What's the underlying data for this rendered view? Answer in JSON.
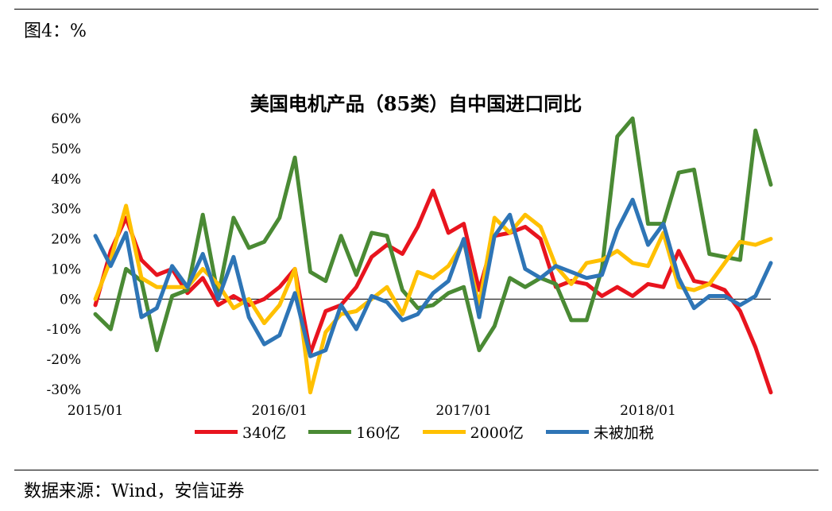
{
  "figure_label": "图4：%",
  "source": "数据来源：Wind，安信证券",
  "chart_data": {
    "type": "line",
    "title": "美国电机产品（85类）自中国进口同比",
    "xlabel": "",
    "ylabel": "",
    "ylim": [
      -0.3,
      0.6
    ],
    "y_ticks": [
      "60%",
      "50%",
      "40%",
      "30%",
      "20%",
      "10%",
      "0%",
      "-10%",
      "-20%",
      "-30%"
    ],
    "x_ticks": [
      {
        "label": "2015/01",
        "index": 0
      },
      {
        "label": "2016/01",
        "index": 12
      },
      {
        "label": "2017/01",
        "index": 24
      },
      {
        "label": "2018/01",
        "index": 36
      }
    ],
    "x": [
      "2015/01",
      "2015/02",
      "2015/03",
      "2015/04",
      "2015/05",
      "2015/06",
      "2015/07",
      "2015/08",
      "2015/09",
      "2015/10",
      "2015/11",
      "2015/12",
      "2016/01",
      "2016/02",
      "2016/03",
      "2016/04",
      "2016/05",
      "2016/06",
      "2016/07",
      "2016/08",
      "2016/09",
      "2016/10",
      "2016/11",
      "2016/12",
      "2017/01",
      "2017/02",
      "2017/03",
      "2017/04",
      "2017/05",
      "2017/06",
      "2017/07",
      "2017/08",
      "2017/09",
      "2017/10",
      "2017/11",
      "2017/12",
      "2018/01",
      "2018/02",
      "2018/03",
      "2018/04",
      "2018/05",
      "2018/06",
      "2018/07",
      "2018/08",
      "2018/09"
    ],
    "series": [
      {
        "name": "340亿",
        "color": "#e8141e",
        "values": [
          -0.02,
          0.16,
          0.27,
          0.13,
          0.08,
          0.1,
          0.02,
          0.07,
          -0.02,
          0.01,
          -0.02,
          0.0,
          0.04,
          0.1,
          -0.18,
          -0.04,
          -0.02,
          0.04,
          0.14,
          0.18,
          0.15,
          0.24,
          0.36,
          0.22,
          0.25,
          0.03,
          0.21,
          0.22,
          0.24,
          0.2,
          0.04,
          0.06,
          0.05,
          0.01,
          0.04,
          0.01,
          0.05,
          0.04,
          0.16,
          0.06,
          0.05,
          0.03,
          -0.04,
          -0.16,
          -0.31
        ]
      },
      {
        "name": "160亿",
        "color": "#4a8a34",
        "values": [
          -0.05,
          -0.1,
          0.1,
          0.06,
          -0.17,
          0.01,
          0.03,
          0.28,
          0.01,
          0.27,
          0.17,
          0.19,
          0.27,
          0.47,
          0.09,
          0.06,
          0.21,
          0.08,
          0.22,
          0.21,
          0.03,
          -0.03,
          -0.02,
          0.02,
          0.04,
          -0.17,
          -0.09,
          0.07,
          0.04,
          0.07,
          0.05,
          -0.07,
          -0.07,
          0.1,
          0.54,
          0.6,
          0.25,
          0.25,
          0.42,
          0.43,
          0.15,
          0.14,
          0.13,
          0.56,
          0.38
        ]
      },
      {
        "name": "2000亿",
        "color": "#ffc000",
        "values": [
          0.0,
          0.13,
          0.31,
          0.07,
          0.04,
          0.04,
          0.04,
          0.1,
          0.05,
          -0.03,
          0.0,
          -0.08,
          -0.02,
          0.1,
          -0.31,
          -0.11,
          -0.05,
          -0.04,
          0.0,
          0.04,
          -0.05,
          0.09,
          0.07,
          0.11,
          0.19,
          -0.02,
          0.27,
          0.22,
          0.28,
          0.24,
          0.11,
          0.05,
          0.12,
          0.13,
          0.16,
          0.12,
          0.11,
          0.22,
          0.04,
          0.03,
          0.05,
          0.12,
          0.19,
          0.18,
          0.2
        ]
      },
      {
        "name": "未被加税",
        "color": "#2e75b6",
        "values": [
          0.21,
          0.11,
          0.22,
          -0.06,
          -0.03,
          0.11,
          0.04,
          0.15,
          0.0,
          0.14,
          -0.06,
          -0.15,
          -0.12,
          0.02,
          -0.19,
          -0.17,
          -0.02,
          -0.1,
          0.01,
          -0.01,
          -0.07,
          -0.05,
          0.02,
          0.06,
          0.2,
          -0.06,
          0.21,
          0.28,
          0.1,
          0.07,
          0.11,
          0.09,
          0.07,
          0.08,
          0.23,
          0.33,
          0.18,
          0.25,
          0.07,
          -0.03,
          0.01,
          0.01,
          -0.02,
          0.01,
          0.12
        ]
      }
    ],
    "grid": false,
    "legend_position": "bottom"
  }
}
